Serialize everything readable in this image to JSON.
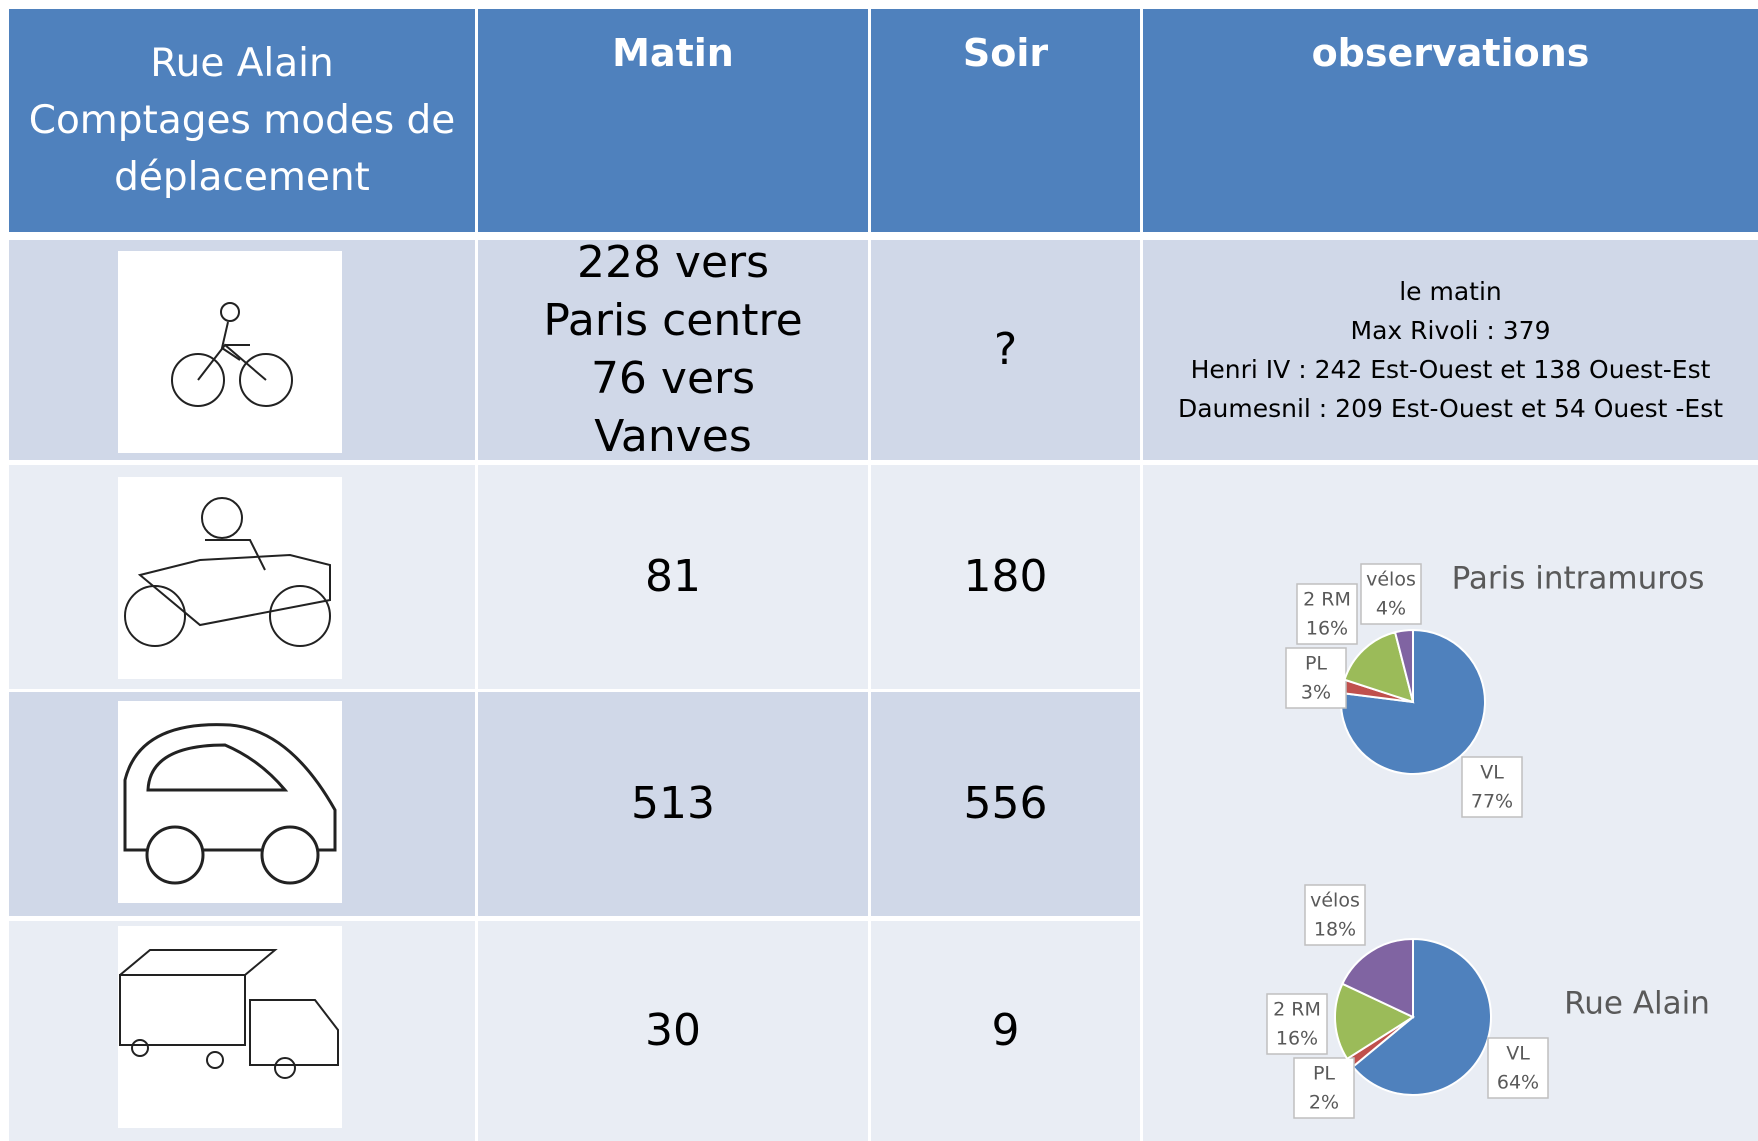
{
  "table": {
    "header": [
      [
        "Rue Alain",
        "Comptages modes de",
        "déplacement"
      ],
      "Matin",
      "Soir",
      "observations"
    ],
    "rows": [
      [
        [
          "228 vers Paris centre",
          "76 vers Vanves"
        ],
        "?"
      ],
      [
        81,
        180
      ],
      [
        513,
        556
      ],
      [
        30,
        9
      ]
    ],
    "observations": [
      "le matin",
      "Max Rivoli : 379",
      "Henri IV : 242 Est-Ouest et 138 Ouest-Est",
      "Daumesnil : 209 Est-Ouest et 54 Ouest -Est"
    ]
  },
  "chart_data": [
    {
      "type": "pie",
      "title": "Paris intramuros",
      "categories": [
        "VL",
        "PL",
        "2 RM",
        "vélos"
      ],
      "values": [
        77,
        3,
        16,
        4
      ],
      "value_labels": [
        "77%",
        "3%",
        "16%",
        "4%"
      ],
      "colors": [
        "#4f81bd",
        "#c0504d",
        "#9bbb59",
        "#8064a2"
      ]
    },
    {
      "type": "pie",
      "title": "Rue Alain",
      "categories": [
        "VL",
        "PL",
        "2 RM",
        "vélos"
      ],
      "values": [
        64,
        2,
        16,
        18
      ],
      "value_labels": [
        "64%",
        "2%",
        "16%",
        "18%"
      ],
      "colors": [
        "#4f81bd",
        "#c0504d",
        "#9bbb59",
        "#8064a2"
      ]
    }
  ]
}
